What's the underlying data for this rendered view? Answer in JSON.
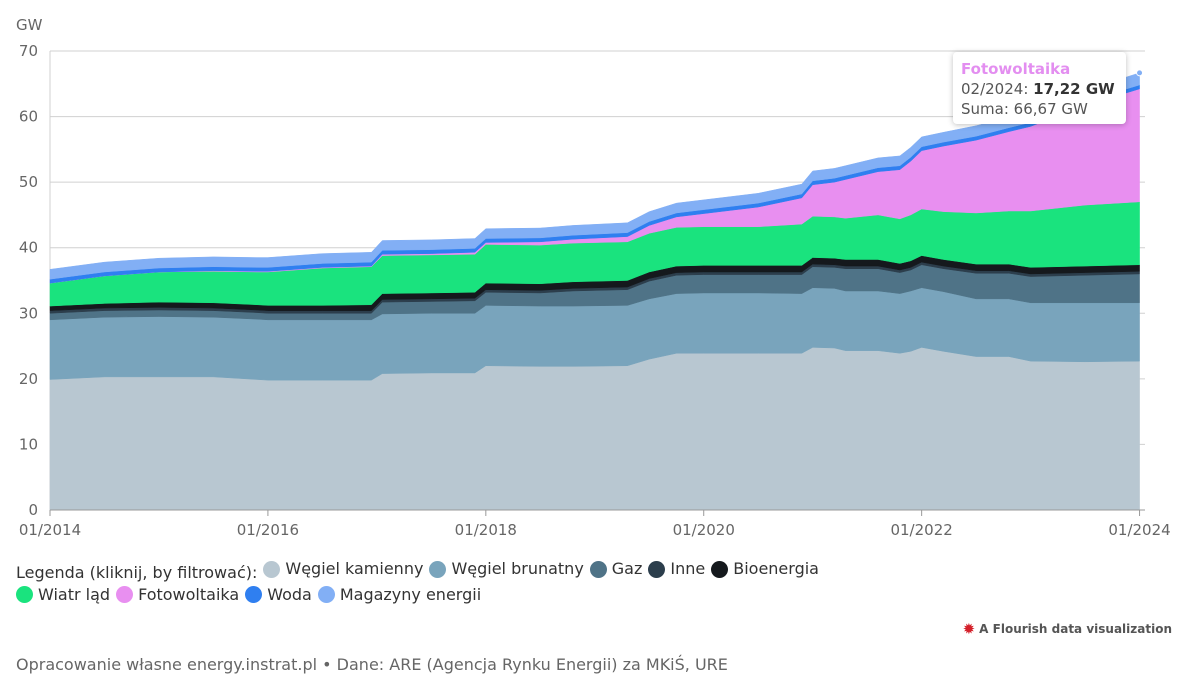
{
  "chart_data": {
    "type": "area",
    "stacked": true,
    "ylabel": "GW",
    "ylim": [
      0,
      70
    ],
    "yticks": [
      0,
      10,
      20,
      30,
      40,
      50,
      60,
      70
    ],
    "x": [
      2014.0,
      2014.5,
      2015.0,
      2015.5,
      2015.9,
      2016.0,
      2016.5,
      2016.95,
      2017.05,
      2017.5,
      2017.9,
      2018.0,
      2018.5,
      2018.8,
      2019.3,
      2019.5,
      2019.75,
      2020.0,
      2020.5,
      2020.9,
      2021.0,
      2021.2,
      2021.3,
      2021.6,
      2021.8,
      2021.9,
      2022.0,
      2022.2,
      2022.5,
      2022.8,
      2023.0,
      2023.5,
      2024.0
    ],
    "xticks": [
      {
        "value": 2014.0,
        "label": "01/2014"
      },
      {
        "value": 2016.0,
        "label": "01/2016"
      },
      {
        "value": 2018.0,
        "label": "01/2018"
      },
      {
        "value": 2020.0,
        "label": "01/2020"
      },
      {
        "value": 2022.0,
        "label": "01/2022"
      },
      {
        "value": 2024.0,
        "label": "01/2024"
      }
    ],
    "xlim": [
      2014.0,
      2024.05
    ],
    "series": [
      {
        "name": "Węgiel kamienny",
        "color": "#b8c7d1",
        "values": [
          19.9,
          20.3,
          20.3,
          20.3,
          19.9,
          19.8,
          19.8,
          19.8,
          20.8,
          20.9,
          20.9,
          22.0,
          21.9,
          21.9,
          22.0,
          23.0,
          23.9,
          23.9,
          23.9,
          23.9,
          24.8,
          24.7,
          24.3,
          24.3,
          23.9,
          24.2,
          24.8,
          24.2,
          23.4,
          23.4,
          22.7,
          22.6,
          22.7
        ]
      },
      {
        "name": "Węgiel brunatny",
        "color": "#79a4bc",
        "values": [
          9.1,
          9.1,
          9.2,
          9.1,
          9.2,
          9.2,
          9.2,
          9.2,
          9.1,
          9.1,
          9.1,
          9.2,
          9.2,
          9.2,
          9.2,
          9.2,
          9.1,
          9.2,
          9.2,
          9.1,
          9.1,
          9.1,
          9.1,
          9.1,
          9.1,
          9.2,
          9.1,
          9.1,
          8.8,
          8.8,
          8.9,
          9.0,
          8.9
        ]
      },
      {
        "name": "Gaz",
        "color": "#4f7387",
        "values": [
          1.0,
          1.0,
          1.0,
          1.0,
          1.0,
          1.0,
          1.0,
          1.0,
          1.8,
          1.8,
          1.9,
          2.0,
          2.0,
          2.3,
          2.4,
          2.7,
          2.8,
          2.8,
          2.8,
          2.9,
          3.2,
          3.2,
          3.4,
          3.4,
          3.2,
          3.2,
          3.5,
          3.5,
          3.9,
          3.9,
          4.0,
          4.2,
          4.4
        ]
      },
      {
        "name": "Inne",
        "color": "#2c3e4c",
        "values": [
          0.4,
          0.4,
          0.4,
          0.4,
          0.4,
          0.4,
          0.4,
          0.4,
          0.4,
          0.4,
          0.4,
          0.4,
          0.4,
          0.4,
          0.4,
          0.4,
          0.4,
          0.4,
          0.4,
          0.4,
          0.4,
          0.4,
          0.4,
          0.4,
          0.4,
          0.4,
          0.4,
          0.4,
          0.4,
          0.4,
          0.4,
          0.4,
          0.4
        ]
      },
      {
        "name": "Bioenergia",
        "color": "#15191d",
        "values": [
          0.7,
          0.7,
          0.8,
          0.8,
          0.8,
          0.8,
          0.8,
          0.9,
          0.9,
          0.9,
          0.9,
          1.0,
          1.0,
          1.0,
          1.0,
          1.0,
          1.0,
          1.0,
          1.0,
          1.0,
          1.0,
          1.0,
          1.0,
          1.0,
          1.0,
          1.0,
          1.0,
          1.0,
          1.0,
          1.0,
          1.0,
          1.0,
          1.0
        ]
      },
      {
        "name": "Wiatr ląd",
        "color": "#1ae37e",
        "values": [
          3.5,
          4.2,
          4.6,
          4.8,
          5.0,
          5.1,
          5.7,
          5.8,
          5.8,
          5.8,
          5.8,
          5.9,
          5.9,
          5.9,
          5.9,
          5.9,
          5.9,
          5.9,
          5.9,
          6.3,
          6.3,
          6.3,
          6.3,
          6.8,
          6.8,
          7.0,
          7.1,
          7.3,
          7.8,
          8.1,
          8.6,
          9.3,
          9.6
        ]
      },
      {
        "name": "Fotowoltaika",
        "color": "#e88ff0",
        "values": [
          0.0,
          0.0,
          0.0,
          0.1,
          0.1,
          0.1,
          0.1,
          0.1,
          0.2,
          0.2,
          0.3,
          0.3,
          0.5,
          0.6,
          0.8,
          1.2,
          1.6,
          2.0,
          3.0,
          4.0,
          4.8,
          5.3,
          5.9,
          6.6,
          7.5,
          8.2,
          8.9,
          10.0,
          11.1,
          12.1,
          12.9,
          15.2,
          17.22
        ]
      },
      {
        "name": "Woda",
        "color": "#2f7ff0",
        "values": [
          0.6,
          0.6,
          0.6,
          0.6,
          0.6,
          0.6,
          0.6,
          0.6,
          0.6,
          0.6,
          0.6,
          0.6,
          0.6,
          0.6,
          0.6,
          0.6,
          0.6,
          0.6,
          0.6,
          0.6,
          0.6,
          0.6,
          0.6,
          0.6,
          0.6,
          0.6,
          0.6,
          0.6,
          0.6,
          0.6,
          0.6,
          0.6,
          0.6
        ]
      },
      {
        "name": "Magazyny energii",
        "color": "#82aff5",
        "values": [
          1.5,
          1.5,
          1.5,
          1.5,
          1.5,
          1.5,
          1.5,
          1.5,
          1.5,
          1.5,
          1.5,
          1.5,
          1.5,
          1.5,
          1.5,
          1.5,
          1.5,
          1.5,
          1.5,
          1.5,
          1.5,
          1.5,
          1.5,
          1.5,
          1.5,
          1.5,
          1.5,
          1.5,
          1.6,
          1.6,
          1.7,
          1.7,
          1.85
        ]
      }
    ]
  },
  "legend": {
    "title": "Legenda (kliknij, by filtrować):",
    "items": [
      {
        "label": "Węgiel kamienny",
        "color": "#b8c7d1"
      },
      {
        "label": "Węgiel brunatny",
        "color": "#79a4bc"
      },
      {
        "label": "Gaz",
        "color": "#4f7387"
      },
      {
        "label": "Inne",
        "color": "#2c3e4c"
      },
      {
        "label": "Bioenergia",
        "color": "#15191d"
      },
      {
        "label": "Wiatr ląd",
        "color": "#1ae37e"
      },
      {
        "label": "Fotowoltaika",
        "color": "#e88ff0"
      },
      {
        "label": "Woda",
        "color": "#2f7ff0"
      },
      {
        "label": "Magazyny energii",
        "color": "#82aff5"
      }
    ]
  },
  "tooltip": {
    "series": "Fotowoltaika",
    "date": "02/2024",
    "value": "17,22 GW",
    "sum_label": "Suma:",
    "sum_value": "66,67 GW"
  },
  "attribution": "A Flourish data visualization",
  "footer": "Opracowanie własne energy.instrat.pl • Dane: ARE (Agencja Rynku Energii) za MKiŚ, URE"
}
